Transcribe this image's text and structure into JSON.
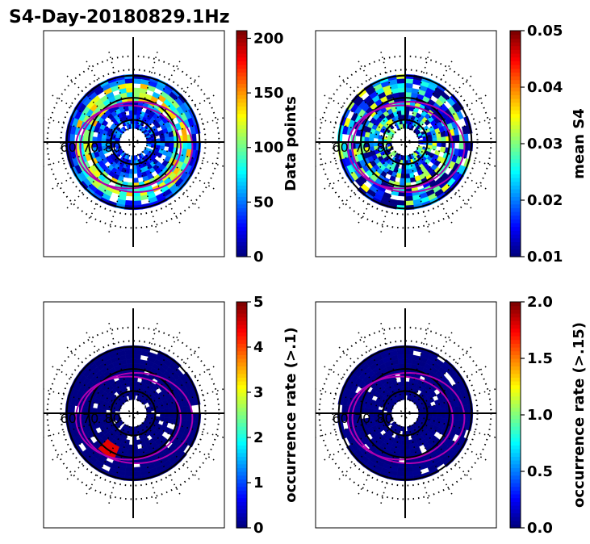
{
  "title": "S4-Day-20180829.1Hz",
  "chart_data": [
    {
      "type": "heatmap",
      "projection": "polar",
      "colormap": "jet",
      "colorbar": {
        "label": "Data points",
        "ticks": [
          "0",
          "50",
          "100",
          "150",
          "200"
        ],
        "range": [
          0,
          207
        ]
      },
      "ring_labels": [
        "60",
        "70",
        "80"
      ],
      "dominant_level": 0.3,
      "noise": 0.35,
      "highlights": []
    },
    {
      "type": "heatmap",
      "projection": "polar",
      "colormap": "jet",
      "colorbar": {
        "label": "mean S4",
        "ticks": [
          "0.01",
          "0.02",
          "0.03",
          "0.04",
          "0.05"
        ],
        "range": [
          0.01,
          0.05
        ]
      },
      "ring_labels": [
        "60",
        "70",
        "80"
      ],
      "dominant_level": 0.02,
      "noise": 0.03,
      "highlights": []
    },
    {
      "type": "heatmap",
      "projection": "polar",
      "colormap": "jet",
      "colorbar": {
        "label": "occurrence rate (>.1)",
        "ticks": [
          "0",
          "1",
          "2",
          "3",
          "4",
          "5"
        ],
        "range": [
          0,
          5
        ]
      },
      "ring_labels": [
        "60",
        "70",
        "80"
      ],
      "dominant_level": 0.02,
      "noise": 0.03,
      "highlights": [
        {
          "mlt_hours": 14,
          "lat_range": [
            68,
            74
          ],
          "value": 4.5
        }
      ]
    },
    {
      "type": "heatmap",
      "projection": "polar",
      "colormap": "jet",
      "colorbar": {
        "label": "occurrence rate (>.15)",
        "ticks": [
          "0.0",
          "0.5",
          "1.0",
          "1.5",
          "2.0"
        ],
        "range": [
          0,
          2
        ]
      },
      "ring_labels": [
        "60",
        "70",
        "80"
      ],
      "dominant_level": 0.02,
      "noise": 0.03,
      "highlights": []
    }
  ]
}
